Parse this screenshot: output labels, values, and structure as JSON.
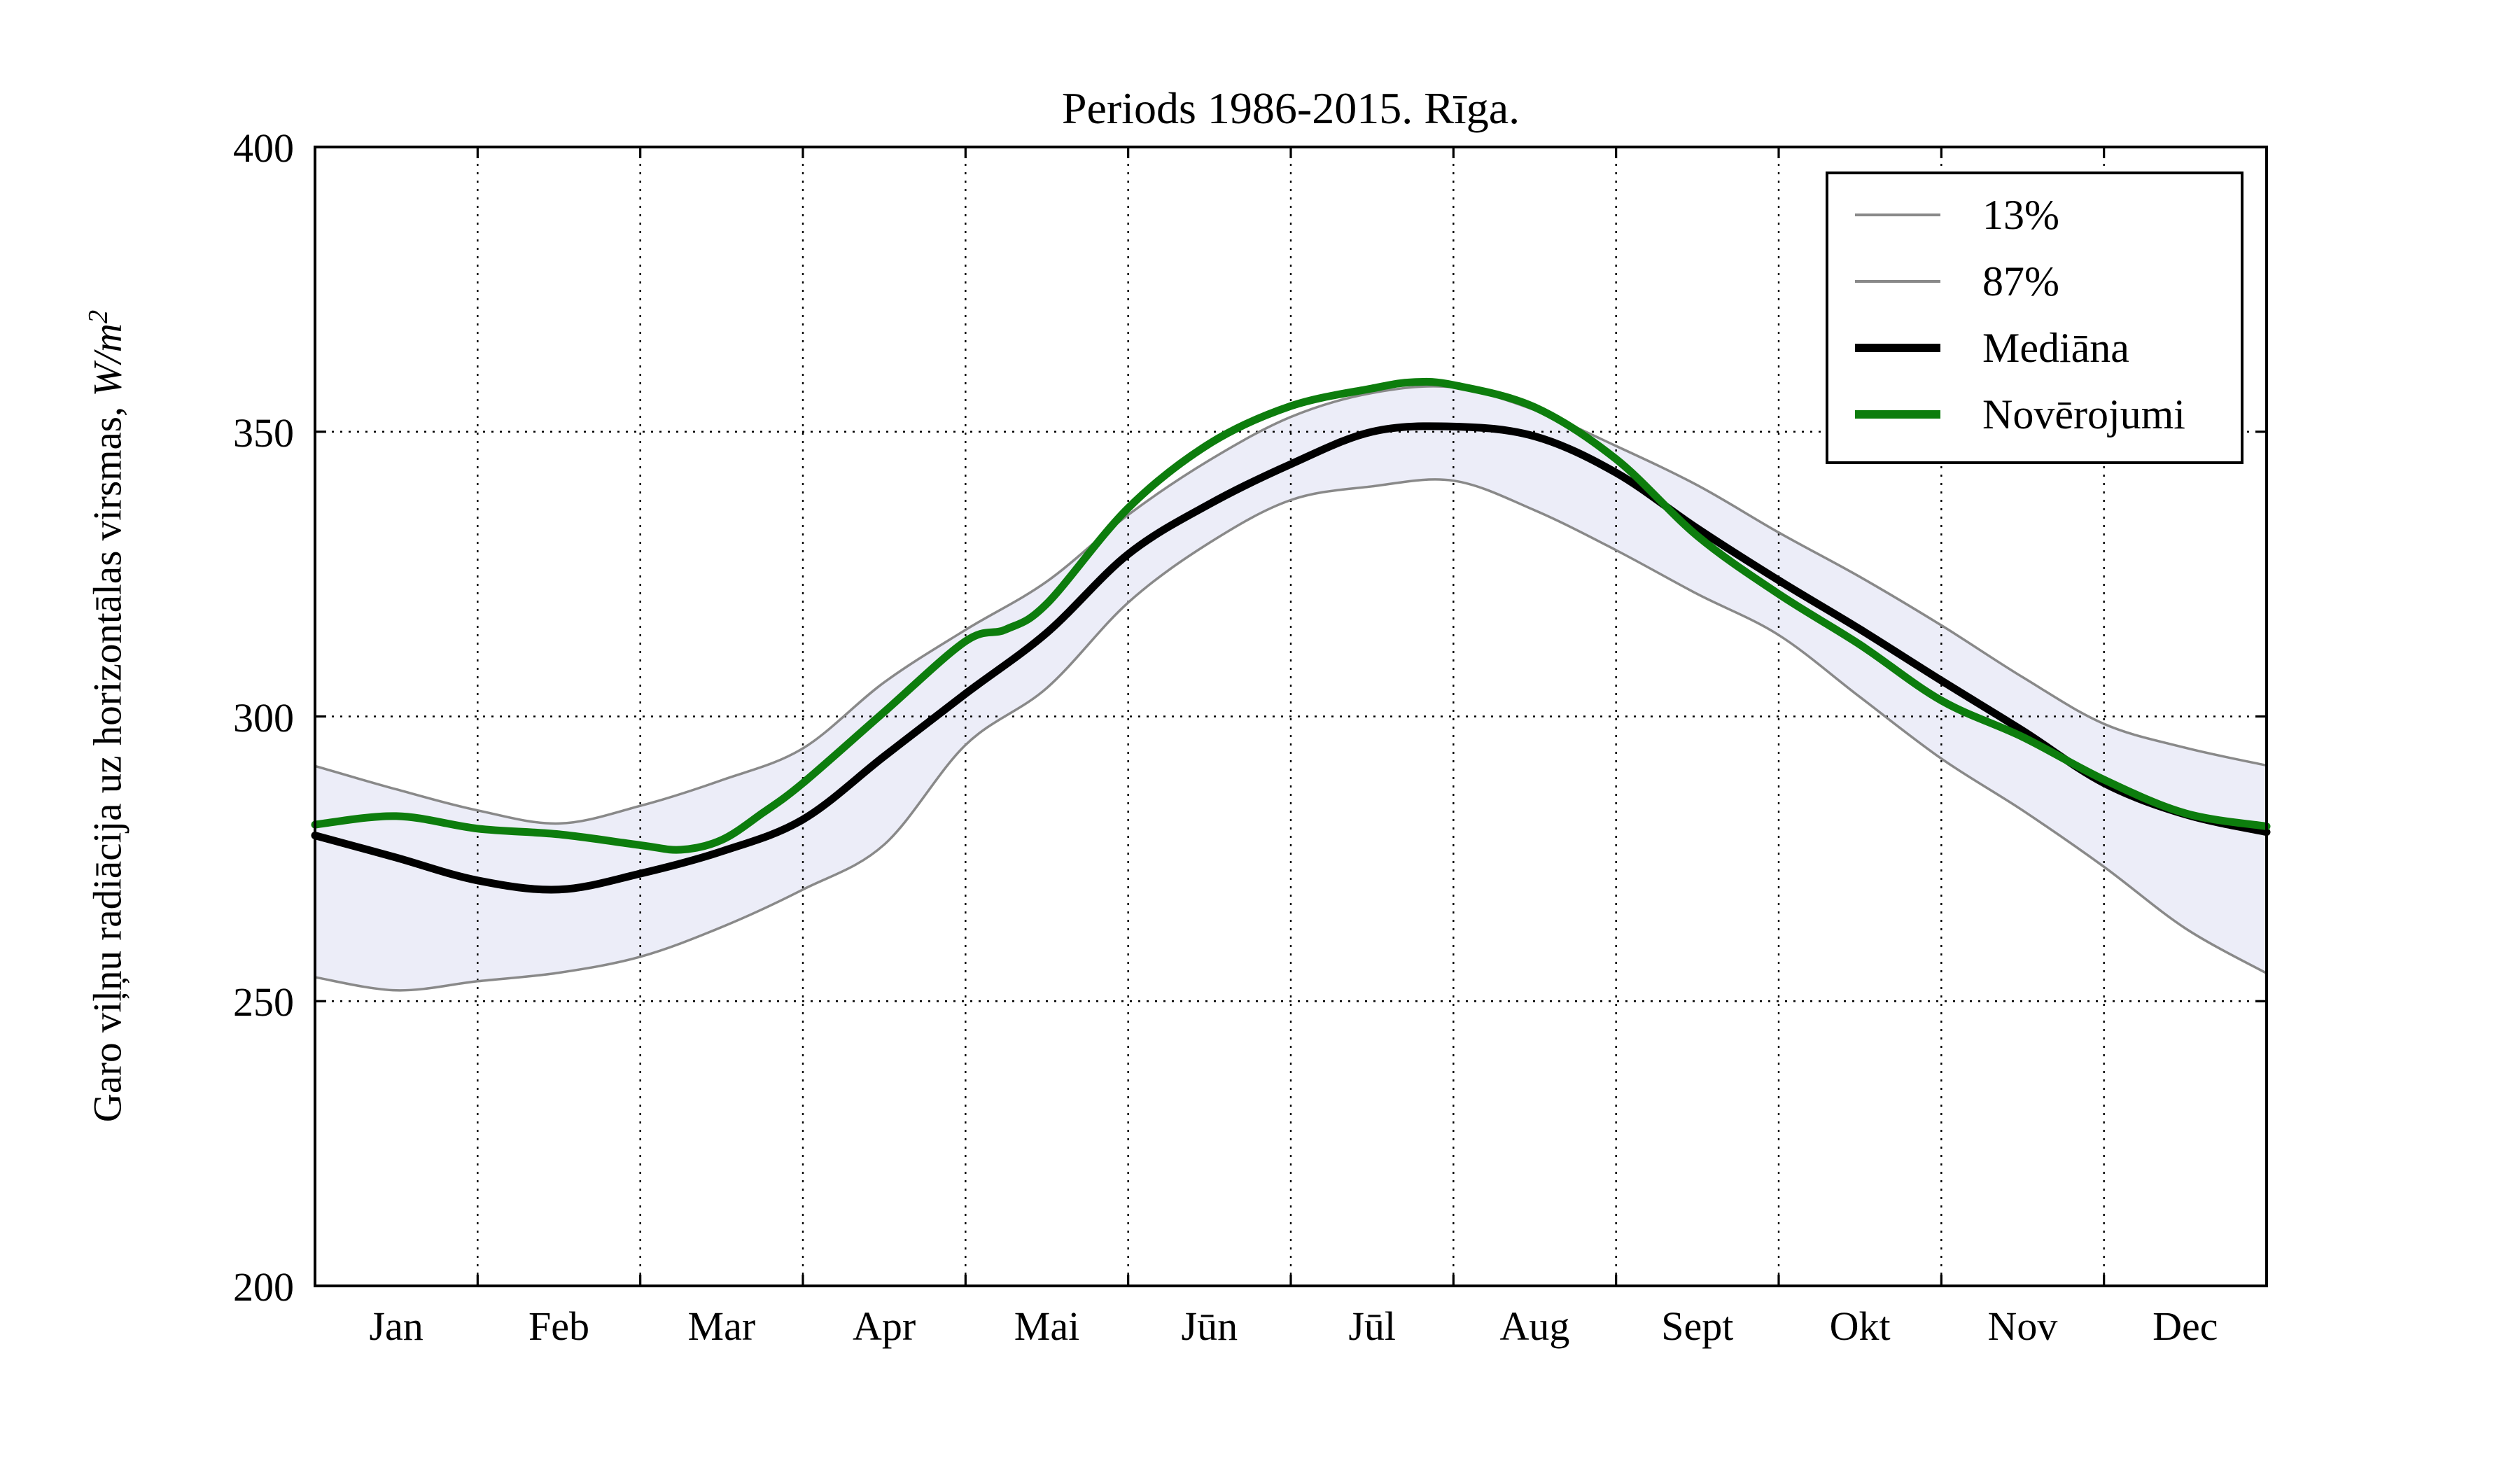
{
  "title": "Periods 1986-2015. Rīga.",
  "axes": {
    "y": {
      "label_prefix": "Garo viļņu radiācija uz horizontālas virsmas, ",
      "label_math": "W/m",
      "label_exp": "2",
      "ticks": [
        400,
        350,
        300,
        250,
        200
      ],
      "min": 200,
      "max": 400
    },
    "x": {
      "months": [
        "Jan",
        "Feb",
        "Mar",
        "Apr",
        "Mai",
        "Jūn",
        "Jūl",
        "Aug",
        "Sept",
        "Okt",
        "Nov",
        "Dec"
      ]
    }
  },
  "legend": {
    "entries": [
      {
        "label": "13%",
        "color": "#898989",
        "thickness": 4
      },
      {
        "label": "87%",
        "color": "#898989",
        "thickness": 4
      },
      {
        "label": "Mediāna",
        "color": "#000000",
        "thickness": 12
      },
      {
        "label": "Novērojumi",
        "color": "#0d7d0d",
        "thickness": 12
      }
    ]
  },
  "colors": {
    "band_fill": "#ecedf8",
    "percentile_line": "#898989",
    "median_line": "#000000",
    "observation_line": "#0d7d0d",
    "grid": "#000000",
    "frame": "#000000"
  },
  "chart_data": {
    "type": "line",
    "title": "Periods 1986-2015. Rīga.",
    "xlabel": "",
    "ylabel": "Garo viļņu radiācija uz horizontālas virsmas, W/m²",
    "ylim": [
      200,
      400
    ],
    "x_unit": "months, 0 = Jan 1 … 12 = Dec 31",
    "grid": true,
    "legend_position": "upper right",
    "band": {
      "between": [
        "13%",
        "87%"
      ],
      "fill": "#ecedf8"
    },
    "series": [
      {
        "name": "13%",
        "color": "#898989",
        "width": 3.5,
        "x": [
          0,
          0.5,
          1,
          1.5,
          2,
          2.5,
          3,
          3.5,
          4,
          4.5,
          5,
          5.5,
          6,
          6.5,
          7,
          7.5,
          8,
          8.5,
          9,
          9.5,
          10,
          10.5,
          11,
          11.5,
          12
        ],
        "values": [
          254.2,
          251.9,
          253.5,
          255.0,
          257.8,
          263.0,
          269.6,
          277.5,
          295.0,
          305.0,
          320.0,
          330.5,
          338.0,
          340.4,
          341.4,
          336.2,
          329.2,
          321.5,
          314.3,
          303.4,
          292.6,
          283.5,
          273.6,
          262.8,
          254.9
        ]
      },
      {
        "name": "87%",
        "color": "#898989",
        "width": 3.5,
        "x": [
          0,
          0.5,
          1,
          1.5,
          2,
          2.5,
          3,
          3.5,
          4,
          4.5,
          5,
          5.5,
          6,
          6.5,
          7,
          7.5,
          8,
          8.5,
          9,
          9.5,
          10,
          10.5,
          11,
          11.5,
          12
        ],
        "values": [
          291.3,
          287.2,
          283.5,
          281.2,
          284.3,
          288.8,
          294.4,
          306.0,
          315.2,
          323.7,
          335.4,
          345.0,
          352.6,
          356.8,
          357.8,
          353.8,
          347.5,
          340.6,
          332.3,
          324.5,
          316.0,
          306.9,
          298.7,
          294.5,
          291.4
        ]
      },
      {
        "name": "Mediāna",
        "color": "#000000",
        "width": 11,
        "x": [
          0,
          0.5,
          1,
          1.5,
          2,
          2.5,
          3,
          3.5,
          4,
          4.5,
          5,
          5.5,
          6,
          6.5,
          7,
          7.5,
          8,
          8.5,
          9,
          9.5,
          10,
          10.5,
          11,
          11.5,
          12
        ],
        "values": [
          279.1,
          275.2,
          271.2,
          269.6,
          272.4,
          276.3,
          281.9,
          293.0,
          304.0,
          314.7,
          328.5,
          337.3,
          344.3,
          350.0,
          350.9,
          349.2,
          342.8,
          333.0,
          323.9,
          315.3,
          306.3,
          297.5,
          288.3,
          282.8,
          279.7
        ]
      },
      {
        "name": "Novērojumi",
        "color": "#0d7d0d",
        "width": 11,
        "x": [
          0,
          0.5,
          1,
          1.5,
          2,
          2.25,
          2.5,
          2.75,
          3,
          3.5,
          4,
          4.25,
          4.5,
          5,
          5.5,
          6,
          6.5,
          6.75,
          7,
          7.5,
          8,
          8.5,
          9,
          9.5,
          10,
          10.5,
          11,
          11.5,
          12
        ],
        "values": [
          281.0,
          282.5,
          280.3,
          279.3,
          277.4,
          276.6,
          278.3,
          283.0,
          288.3,
          300.8,
          313.2,
          315.3,
          319.8,
          336.6,
          347.9,
          354.5,
          357.6,
          358.7,
          358.2,
          354.3,
          345.2,
          331.7,
          321.5,
          312.6,
          302.8,
          296.4,
          288.9,
          283.0,
          280.7
        ]
      }
    ]
  }
}
